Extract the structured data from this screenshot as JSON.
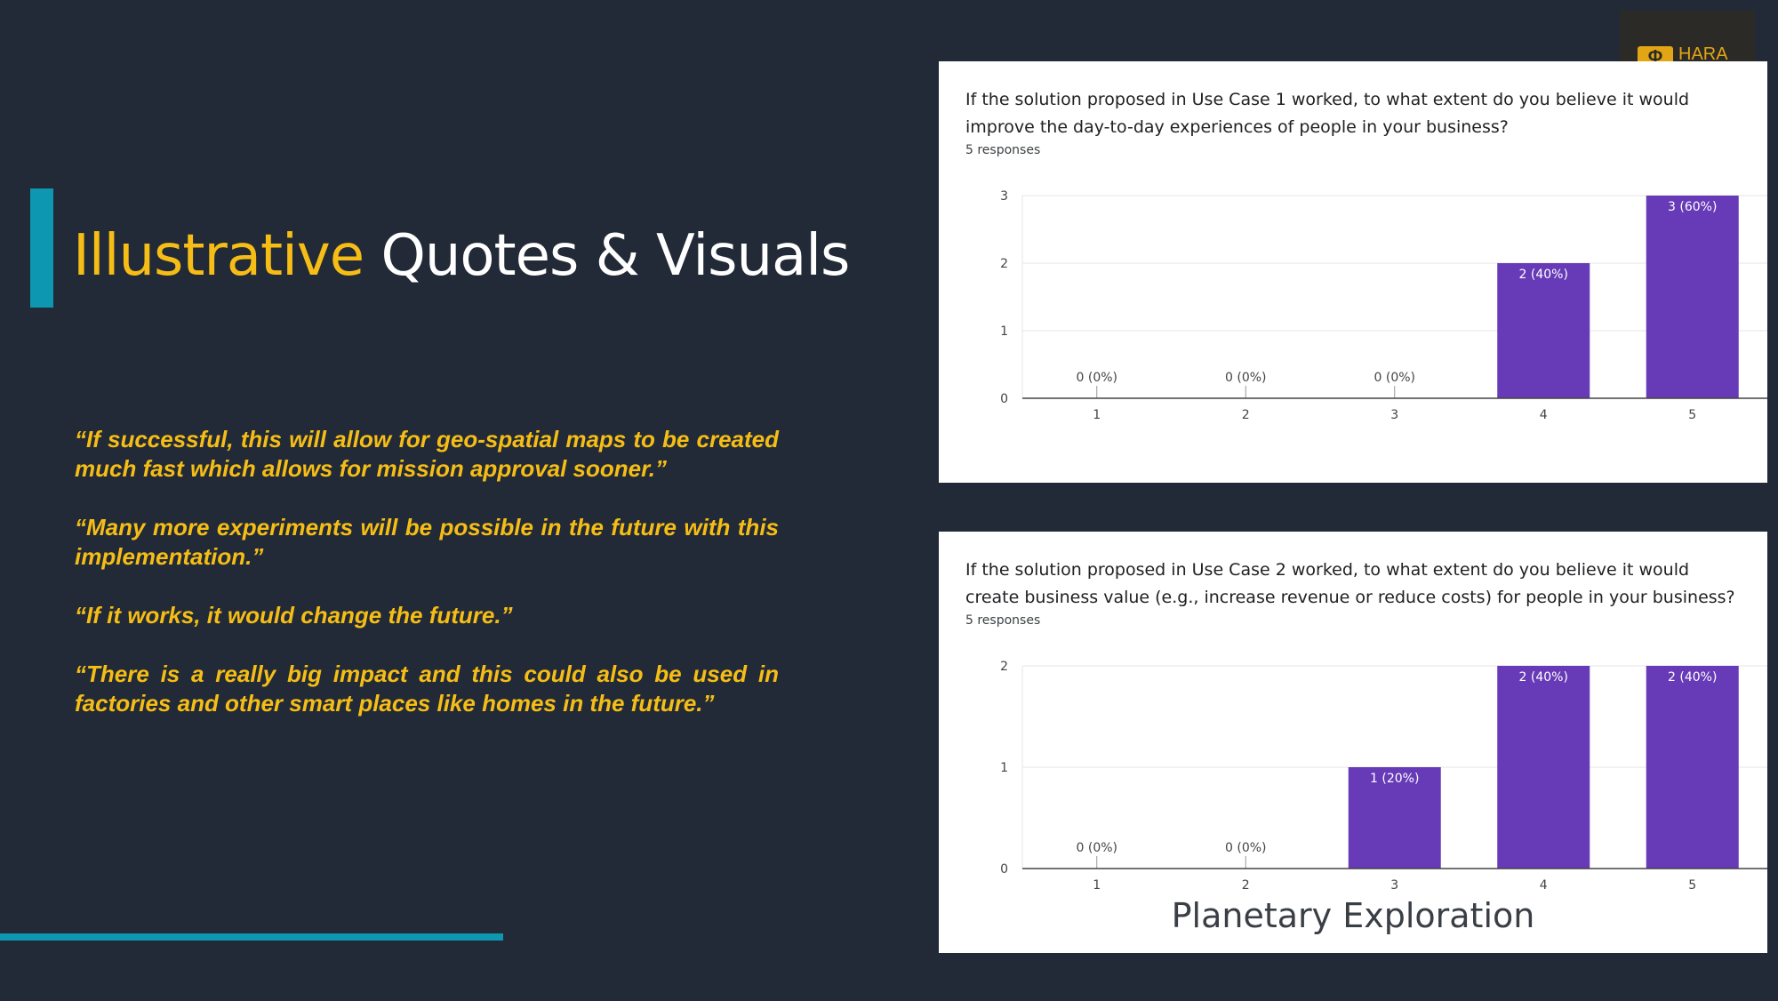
{
  "slide": {
    "title_highlight": "Illustrative",
    "title_rest": " Quotes & Visuals",
    "quotes": [
      "“If successful, this will allow for geo-spatial maps to be created much fast which allows for mission approval sooner.”",
      "“Many more experiments will be possible in the future with this implementation.”",
      "“If it works, it would change the future.”",
      "“There is a really big impact and this could also be used in factories and other smart places like homes in the future.”"
    ],
    "logo_text": "HARA",
    "footer_caption": "Planetary Exploration",
    "colors": {
      "background": "#212a36",
      "accent": "#0e97b0",
      "highlight": "#f6bd16",
      "bar": "#673ab7"
    }
  },
  "chart_data": [
    {
      "type": "bar",
      "title": "If the solution proposed in Use Case 1 worked, to what extent do you believe it would improve the day-to-day experiences of people in your business?",
      "subtitle": "5 responses",
      "categories": [
        "1",
        "2",
        "3",
        "4",
        "5"
      ],
      "values": [
        0,
        0,
        0,
        2,
        3
      ],
      "data_labels": [
        "0 (0%)",
        "0 (0%)",
        "0 (0%)",
        "2 (40%)",
        "3 (60%)"
      ],
      "yticks": [
        0,
        1,
        2,
        3
      ],
      "ylim": [
        0,
        3
      ],
      "grid": true,
      "color": "#673ab7"
    },
    {
      "type": "bar",
      "title": "If the solution proposed in Use Case 2 worked, to what extent do you believe it would create business value (e.g., increase revenue or reduce costs) for people in your business?",
      "subtitle": "5 responses",
      "categories": [
        "1",
        "2",
        "3",
        "4",
        "5"
      ],
      "values": [
        0,
        0,
        1,
        2,
        2
      ],
      "data_labels": [
        "0 (0%)",
        "0 (0%)",
        "1 (20%)",
        "2 (40%)",
        "2 (40%)"
      ],
      "yticks": [
        0,
        1,
        2
      ],
      "ylim": [
        0,
        2
      ],
      "grid": true,
      "color": "#673ab7"
    }
  ]
}
